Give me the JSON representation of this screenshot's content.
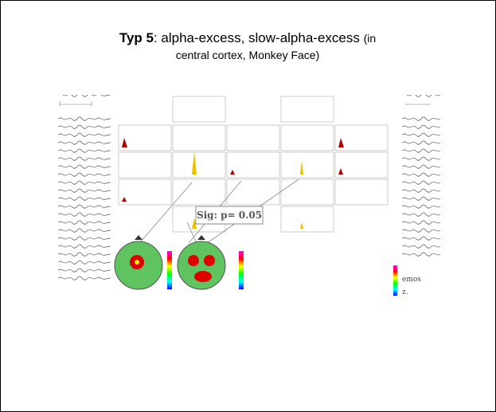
{
  "slide": {
    "title_bold": "Typ 5",
    "title_rest": ": alpha-excess, slow-alpha-excess",
    "title_small": "(in",
    "title_line2": "central cortex, Monkey Face)"
  },
  "figure": {
    "sig_label": "Sig: p= 0.05",
    "cropped_text_1": "emos",
    "cropped_text_2": "z."
  },
  "colors": {
    "eeg_trace": "#555555",
    "spectrum_peak": "#e8c400",
    "spectrum_red": "#b00000",
    "head_green": "#5fc45f",
    "hotspot": "#e00000",
    "sig_box_border": "#888888"
  }
}
